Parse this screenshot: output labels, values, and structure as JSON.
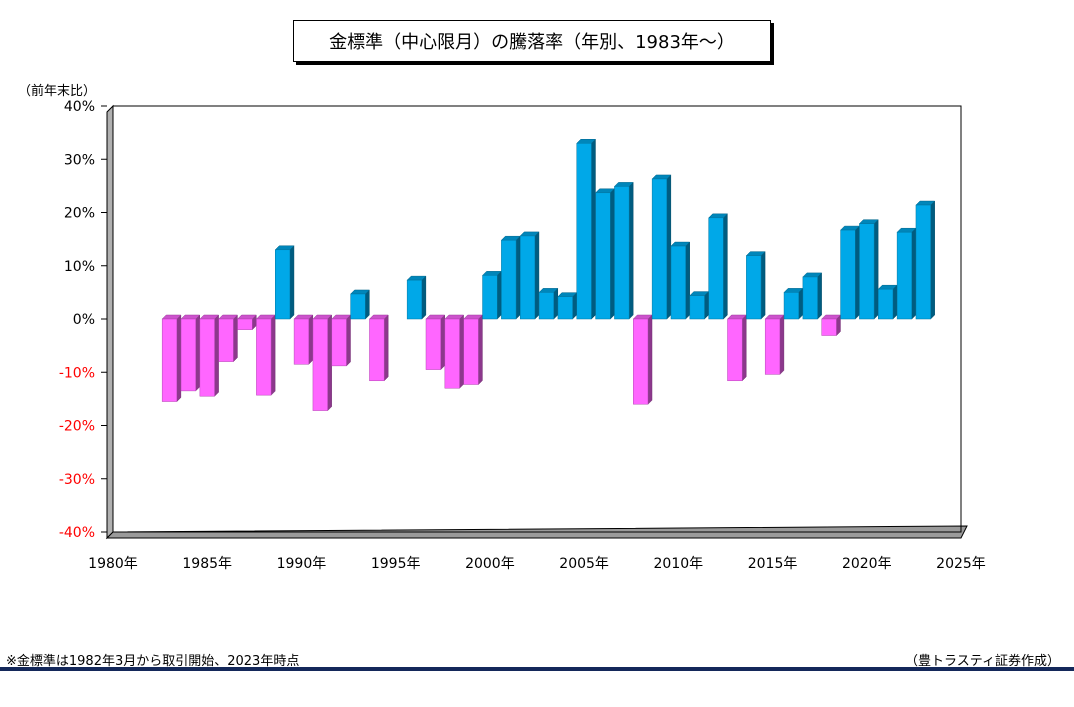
{
  "title": "金標準（中心限月）の騰落率（年別、1983年～）",
  "y_unit": "（前年末比）",
  "footnote": "※金標準は1982年3月から取引開始、2023年時点",
  "credit": "（豊トラスティ証券作成）",
  "colors": {
    "positive": "#00a8e8",
    "negative": "#ff66ff"
  },
  "chart_data": {
    "type": "bar",
    "title": "金標準（中心限月）の騰落率（年別、1983年～）",
    "ylabel": "（前年末比）",
    "xlim": [
      1980,
      2025
    ],
    "ylim": [
      -40,
      40
    ],
    "grid": true,
    "x_ticks": [
      1980,
      1985,
      1990,
      1995,
      2000,
      2005,
      2010,
      2015,
      2020,
      2025
    ],
    "x_tick_labels": [
      "1980年",
      "1985年",
      "1990年",
      "1995年",
      "2000年",
      "2005年",
      "2010年",
      "2015年",
      "2020年",
      "2025年"
    ],
    "y_ticks": [
      -40,
      -30,
      -20,
      -10,
      0,
      10,
      20,
      30,
      40
    ],
    "y_tick_labels": [
      "-40%",
      "-30%",
      "-20%",
      "-10%",
      "0%",
      "10%",
      "20%",
      "30%",
      "40%"
    ],
    "categories": [
      1983,
      1984,
      1985,
      1986,
      1987,
      1988,
      1989,
      1990,
      1991,
      1992,
      1993,
      1994,
      1995,
      1996,
      1997,
      1998,
      1999,
      2000,
      2001,
      2002,
      2003,
      2004,
      2005,
      2006,
      2007,
      2008,
      2009,
      2010,
      2011,
      2012,
      2013,
      2014,
      2015,
      2016,
      2017,
      2018,
      2019,
      2020,
      2021,
      2022,
      2023
    ],
    "values": [
      -15.5,
      -13.5,
      -14.5,
      -8,
      -2,
      -14.3,
      13,
      -8.5,
      -17.2,
      -8.8,
      4.7,
      -11.6,
      0,
      7.3,
      -9.5,
      -13,
      -12.3,
      8.2,
      14.8,
      15.6,
      5,
      4.2,
      33,
      23.7,
      24.9,
      -16,
      26.3,
      13.7,
      4.4,
      19,
      -11.6,
      11.9,
      -10.4,
      5,
      7.9,
      -3.1,
      16.7,
      17.9,
      5.6,
      16.3,
      21.4
    ]
  }
}
